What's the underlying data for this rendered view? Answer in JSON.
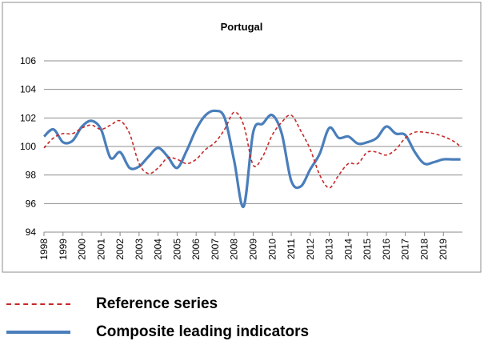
{
  "chart_data": {
    "type": "line",
    "title": "Portugal",
    "ylim": [
      94,
      106
    ],
    "yticks": [
      "94",
      "96",
      "98",
      "100",
      "102",
      "104",
      "106"
    ],
    "xticks": [
      "1998",
      "1999",
      "2000",
      "2001",
      "2002",
      "2003",
      "2004",
      "2005",
      "2006",
      "2007",
      "2008",
      "2009",
      "2010",
      "2011",
      "2012",
      "2013",
      "2014",
      "2015",
      "2016",
      "2017",
      "2018",
      "2019"
    ],
    "grid": "horizontal",
    "legend_position": "bottom",
    "series": [
      {
        "name": "Reference series",
        "style": "dashed",
        "color": "#c62828",
        "x": [
          1998.0,
          1998.5,
          1999.0,
          1999.5,
          2000.0,
          2000.5,
          2001.0,
          2001.5,
          2002.0,
          2002.5,
          2003.0,
          2003.5,
          2004.0,
          2004.5,
          2005.0,
          2005.5,
          2006.0,
          2006.5,
          2007.0,
          2007.5,
          2008.0,
          2008.5,
          2009.0,
          2009.5,
          2010.0,
          2010.5,
          2011.0,
          2011.5,
          2012.0,
          2012.5,
          2013.0,
          2013.5,
          2014.0,
          2014.5,
          2015.0,
          2015.5,
          2016.0,
          2016.5,
          2017.0,
          2017.5,
          2018.0,
          2018.5,
          2019.0,
          2019.5,
          2019.9
        ],
        "y": [
          99.9,
          100.6,
          100.9,
          100.9,
          101.3,
          101.5,
          101.2,
          101.5,
          101.8,
          100.9,
          98.8,
          98.1,
          98.5,
          99.2,
          99.1,
          98.8,
          99.1,
          99.8,
          100.3,
          101.2,
          102.4,
          101.5,
          98.7,
          99.3,
          100.8,
          101.7,
          102.2,
          101.1,
          99.8,
          98.0,
          97.1,
          98.0,
          98.8,
          98.8,
          99.6,
          99.6,
          99.4,
          99.8,
          100.6,
          101.0,
          101.0,
          100.9,
          100.7,
          100.4,
          100.0
        ]
      },
      {
        "name": "Composite leading indicators",
        "style": "solid",
        "color": "#4a7ebb",
        "x": [
          1998.0,
          1998.5,
          1999.0,
          1999.5,
          2000.0,
          2000.5,
          2001.0,
          2001.5,
          2002.0,
          2002.5,
          2003.0,
          2003.5,
          2004.0,
          2004.5,
          2005.0,
          2005.5,
          2006.0,
          2006.5,
          2007.0,
          2007.5,
          2008.0,
          2008.5,
          2009.0,
          2009.5,
          2010.0,
          2010.5,
          2011.0,
          2011.5,
          2012.0,
          2012.5,
          2013.0,
          2013.5,
          2014.0,
          2014.5,
          2015.0,
          2015.5,
          2016.0,
          2016.5,
          2017.0,
          2017.5,
          2018.0,
          2018.5,
          2019.0,
          2019.5,
          2019.9
        ],
        "y": [
          100.7,
          101.2,
          100.3,
          100.4,
          101.4,
          101.8,
          101.2,
          99.2,
          99.6,
          98.5,
          98.6,
          99.3,
          99.9,
          99.3,
          98.5,
          99.7,
          101.2,
          102.2,
          102.5,
          102.0,
          99.0,
          95.8,
          101.0,
          101.6,
          102.2,
          100.9,
          97.6,
          97.2,
          98.4,
          99.5,
          101.3,
          100.6,
          100.7,
          100.2,
          100.3,
          100.6,
          101.4,
          100.9,
          100.8,
          99.6,
          98.8,
          98.9,
          99.1,
          99.1,
          99.1
        ]
      }
    ]
  }
}
